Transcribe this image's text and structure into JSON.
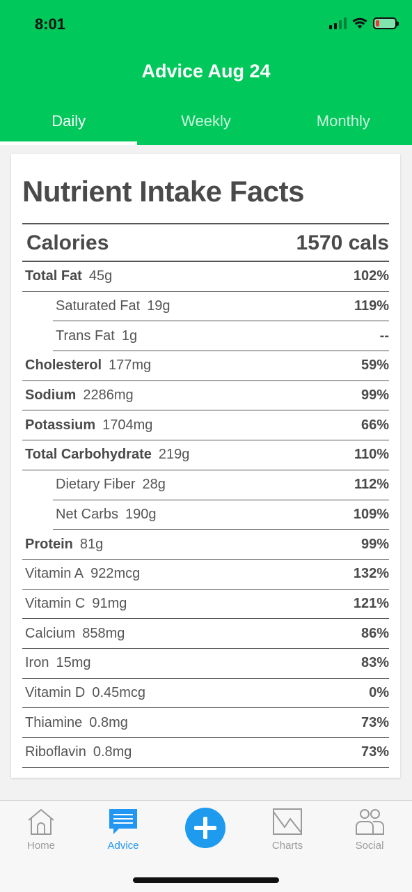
{
  "status": {
    "time": "8:01"
  },
  "header": {
    "title": "Advice Aug 24",
    "tabs": [
      {
        "label": "Daily",
        "active": true
      },
      {
        "label": "Weekly",
        "active": false
      },
      {
        "label": "Monthly",
        "active": false
      }
    ]
  },
  "card": {
    "title": "Nutrient Intake Facts",
    "calories": {
      "label": "Calories",
      "value": "1570 cals"
    },
    "nutrients": [
      {
        "name": "Total Fat",
        "amount": "45g",
        "pct": "102%",
        "bold": true,
        "sub": false
      },
      {
        "name": "Saturated Fat",
        "amount": "19g",
        "pct": "119%",
        "bold": false,
        "sub": true
      },
      {
        "name": "Trans Fat",
        "amount": "1g",
        "pct": "--",
        "bold": false,
        "sub": true
      },
      {
        "name": "Cholesterol",
        "amount": "177mg",
        "pct": "59%",
        "bold": true,
        "sub": false
      },
      {
        "name": "Sodium",
        "amount": "2286mg",
        "pct": "99%",
        "bold": true,
        "sub": false
      },
      {
        "name": "Potassium",
        "amount": "1704mg",
        "pct": "66%",
        "bold": true,
        "sub": false
      },
      {
        "name": "Total Carbohydrate",
        "amount": "219g",
        "pct": "110%",
        "bold": true,
        "sub": false
      },
      {
        "name": "Dietary Fiber",
        "amount": "28g",
        "pct": "112%",
        "bold": false,
        "sub": true
      },
      {
        "name": "Net Carbs",
        "amount": "190g",
        "pct": "109%",
        "bold": false,
        "sub": true
      },
      {
        "name": "Protein",
        "amount": "81g",
        "pct": "99%",
        "bold": true,
        "sub": false
      },
      {
        "name": "Vitamin A",
        "amount": "922mcg",
        "pct": "132%",
        "bold": false,
        "sub": false
      },
      {
        "name": "Vitamin C",
        "amount": "91mg",
        "pct": "121%",
        "bold": false,
        "sub": false
      },
      {
        "name": "Calcium",
        "amount": "858mg",
        "pct": "86%",
        "bold": false,
        "sub": false
      },
      {
        "name": "Iron",
        "amount": "15mg",
        "pct": "83%",
        "bold": false,
        "sub": false
      },
      {
        "name": "Vitamin D",
        "amount": "0.45mcg",
        "pct": "0%",
        "bold": false,
        "sub": false
      },
      {
        "name": "Thiamine",
        "amount": "0.8mg",
        "pct": "73%",
        "bold": false,
        "sub": false
      },
      {
        "name": "Riboflavin",
        "amount": "0.8mg",
        "pct": "73%",
        "bold": false,
        "sub": false
      }
    ]
  },
  "bottom_nav": {
    "home": "Home",
    "advice": "Advice",
    "charts": "Charts",
    "social": "Social"
  },
  "colors": {
    "header_green": "#00c85a",
    "accent_blue": "#2196f3",
    "battery_red": "#e53935"
  }
}
